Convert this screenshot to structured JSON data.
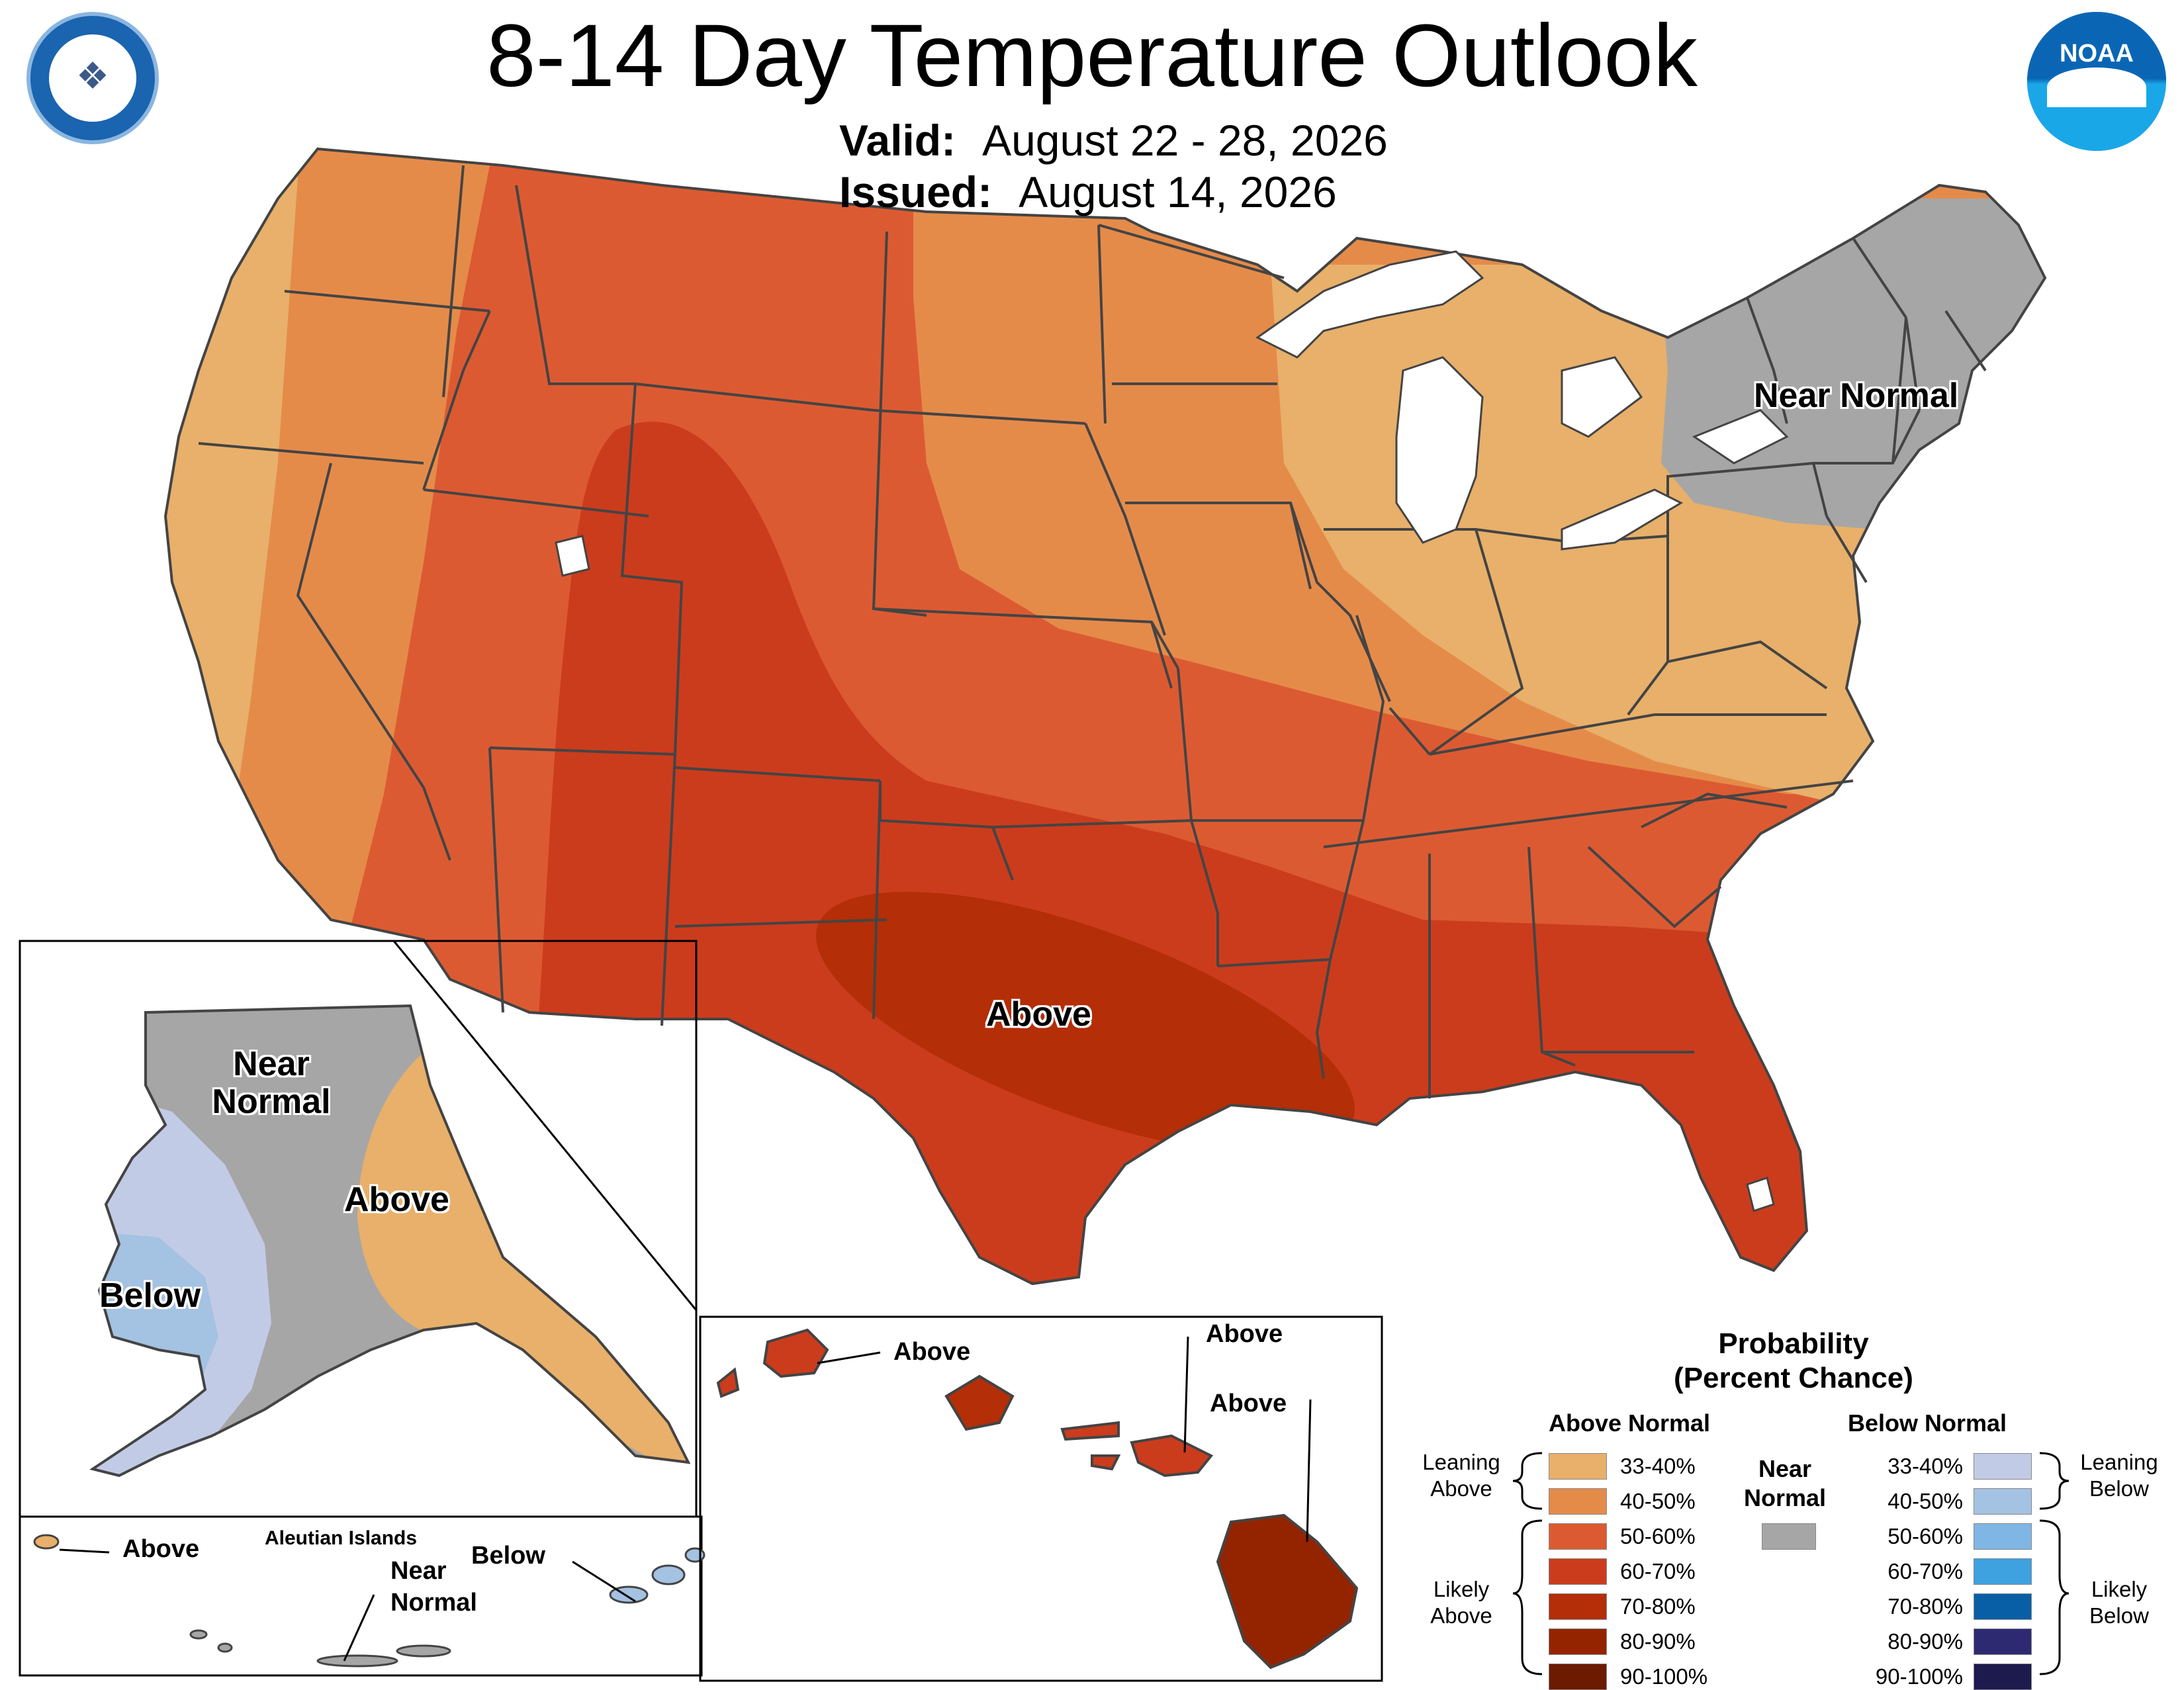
{
  "title": "8-14 Day Temperature Outlook",
  "valid": {
    "label": "Valid:",
    "value": "August 22 - 28, 2026"
  },
  "issued": {
    "label": "Issued:",
    "value": "August 14, 2026"
  },
  "logos": {
    "left": "DEPARTMENT OF COMMERCE • UNITED STATES OF AMERICA",
    "right": "NOAA"
  },
  "region_labels": {
    "conus_near_normal": "Near Normal",
    "conus_above": "Above",
    "alaska_near_normal": "Near Normal",
    "alaska_above": "Above",
    "alaska_below": "Below",
    "aleutian_title": "Aleutian Islands",
    "aleutian_above": "Above",
    "aleutian_near_normal": "Near Normal",
    "aleutian_below": "Below",
    "hawaii_above_1": "Above",
    "hawaii_above_2": "Above",
    "hawaii_above_3": "Above"
  },
  "legend": {
    "title_line1": "Probability",
    "title_line2": "(Percent Chance)",
    "above_header": "Above Normal",
    "below_header": "Below Normal",
    "near_header_1": "Near",
    "near_header_2": "Normal",
    "leaning_above": [
      "Leaning",
      "Above"
    ],
    "likely_above": [
      "Likely",
      "Above"
    ],
    "leaning_below": [
      "Leaning",
      "Below"
    ],
    "likely_below": [
      "Likely",
      "Below"
    ],
    "above_bins": [
      {
        "label": "33-40%",
        "color": "#e8b06a"
      },
      {
        "label": "40-50%",
        "color": "#e58b4a"
      },
      {
        "label": "50-60%",
        "color": "#dc5a32"
      },
      {
        "label": "60-70%",
        "color": "#cb3c1d"
      },
      {
        "label": "70-80%",
        "color": "#b42e08"
      },
      {
        "label": "80-90%",
        "color": "#942400"
      },
      {
        "label": "90-100%",
        "color": "#6c1a00"
      }
    ],
    "near_color": "#a6a6a6",
    "below_bins": [
      {
        "label": "33-40%",
        "color": "#c2cbe6"
      },
      {
        "label": "40-50%",
        "color": "#a4c2e2"
      },
      {
        "label": "50-60%",
        "color": "#7fb6e4"
      },
      {
        "label": "60-70%",
        "color": "#3ea1e0"
      },
      {
        "label": "70-80%",
        "color": "#095fa6"
      },
      {
        "label": "80-90%",
        "color": "#2e2a72"
      },
      {
        "label": "90-100%",
        "color": "#1d1a4e"
      }
    ]
  }
}
